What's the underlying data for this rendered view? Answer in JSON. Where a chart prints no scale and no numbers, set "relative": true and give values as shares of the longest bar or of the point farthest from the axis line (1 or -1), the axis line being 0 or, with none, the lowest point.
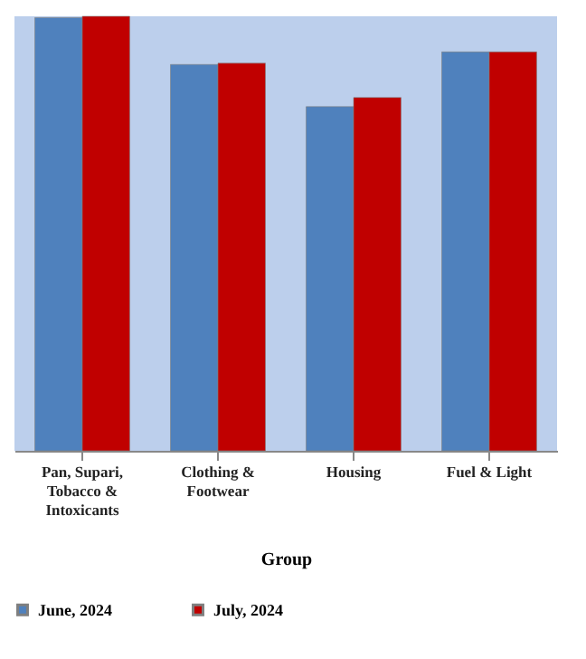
{
  "chart_data": {
    "type": "bar",
    "xlabel": "Group",
    "relative": true,
    "legend": "bottom",
    "categories": [
      "Pan, Supari, Tobacco & Intoxicants",
      "Clothing & Footwear",
      "Housing",
      "Fuel & Light"
    ],
    "series": [
      {
        "name": "June, 2024",
        "color": "#4f81bd",
        "values": [
          0.997,
          0.889,
          0.792,
          0.918
        ]
      },
      {
        "name": "July, 2024",
        "color": "#c00000",
        "values": [
          1,
          0.892,
          0.813,
          0.918
        ]
      }
    ]
  }
}
